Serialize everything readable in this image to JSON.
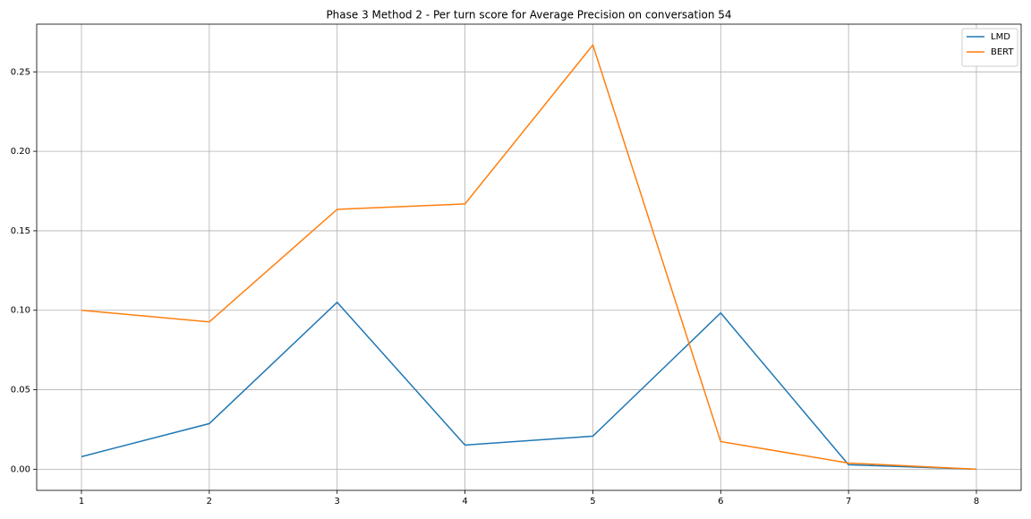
{
  "chart_data": {
    "type": "line",
    "title": "Phase 3 Method 2 - Per turn score for Average Precision on conversation 54",
    "x": [
      1,
      2,
      3,
      4,
      5,
      6,
      7,
      8
    ],
    "series": [
      {
        "name": "LMD",
        "color": "#1f77b4",
        "values": [
          0.0079,
          0.0287,
          0.105,
          0.0152,
          0.0208,
          0.0983,
          0.0028,
          0
        ]
      },
      {
        "name": "BERT",
        "color": "#ff7f0e",
        "values": [
          0.1,
          0.0927,
          0.1635,
          0.1669,
          0.2669,
          0.0174,
          0.0039,
          0
        ]
      }
    ],
    "xlim": [
      0.65,
      8.35
    ],
    "xticks": [
      1,
      2,
      3,
      4,
      5,
      6,
      7,
      8
    ],
    "ylim": [
      -0.0133,
      0.28
    ],
    "yticks": [
      {
        "value": 0,
        "label": "0.00"
      },
      {
        "value": 0.05,
        "label": "0.05"
      },
      {
        "value": 0.1,
        "label": "0.10"
      },
      {
        "value": 0.15,
        "label": "0.15"
      },
      {
        "value": 0.2,
        "label": "0.20"
      },
      {
        "value": 0.25,
        "label": "0.25"
      }
    ],
    "grid": true,
    "legend": "upper right"
  }
}
